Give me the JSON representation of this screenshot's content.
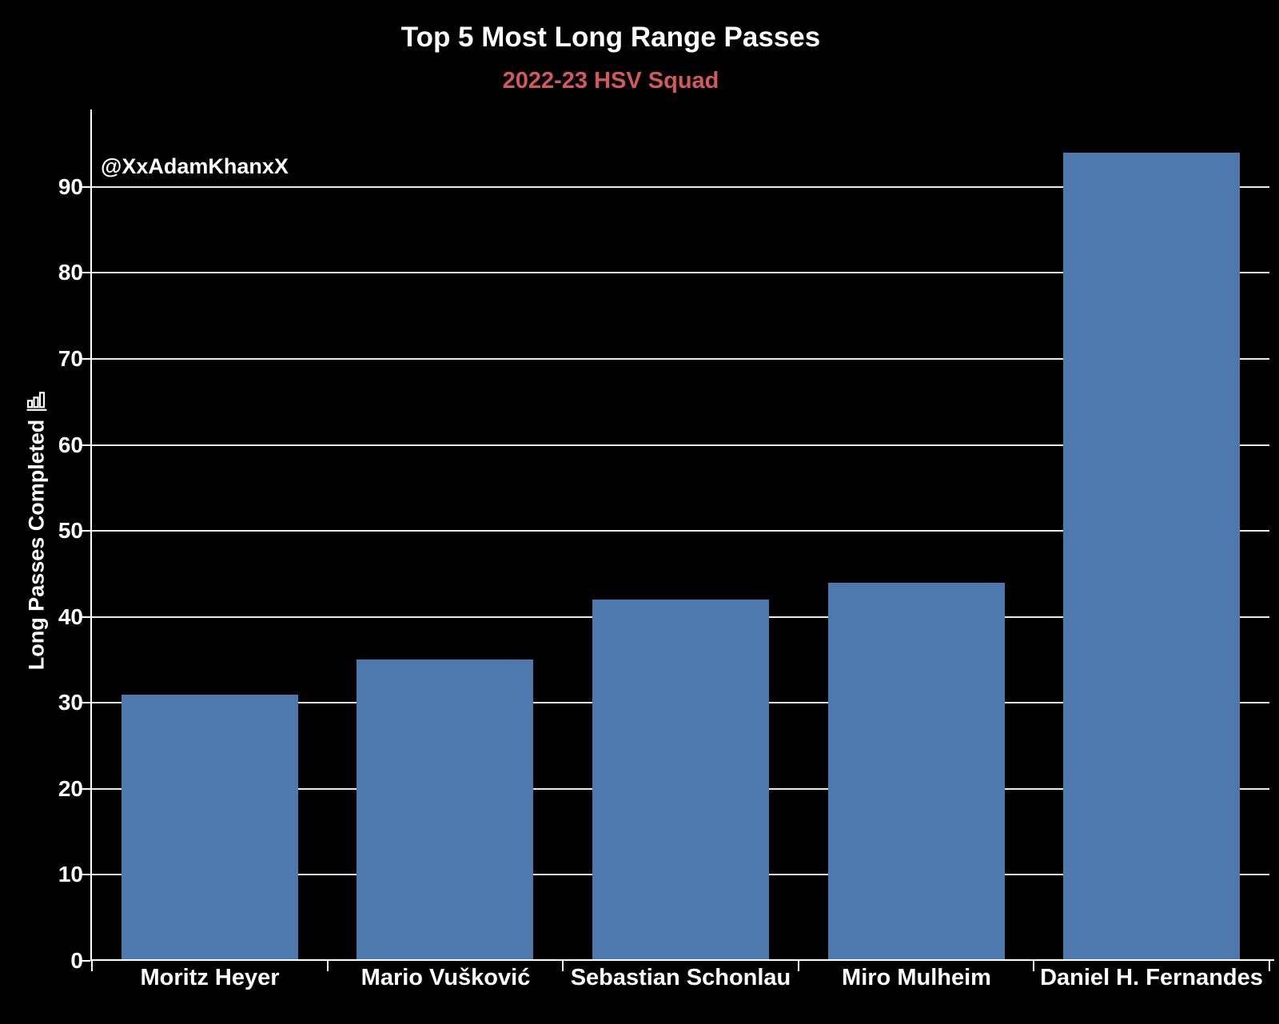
{
  "chart_data": {
    "type": "bar",
    "title": "Top 5 Most Long Range Passes",
    "subtitle": "2022-23 HSV Squad",
    "annotation": "@XxAdamKhanxX",
    "categories": [
      "Moritz Heyer",
      "Mario Vušković",
      "Sebastian Schonlau",
      "Miro Mulheim",
      "Daniel H. Fernandes"
    ],
    "values": [
      31,
      35,
      42,
      44,
      94
    ],
    "xlabel": "",
    "ylabel": "Long Passes Completed",
    "yticks": [
      0,
      10,
      20,
      30,
      40,
      50,
      60,
      70,
      80,
      90
    ],
    "ylim": [
      0,
      99
    ],
    "grid": true,
    "legend": null,
    "icons": {
      "ylabel_suffix": "bar-chart-icon"
    },
    "colors": {
      "background": "#000000",
      "bar": "#4d79ae",
      "grid": "#ffffff",
      "axis": "#ffffff",
      "title": "#ffffff",
      "subtitle": "#d45a5a",
      "tick_labels": "#ffffff",
      "annotation": "#ffffff",
      "ylabel": "#ffffff"
    }
  }
}
